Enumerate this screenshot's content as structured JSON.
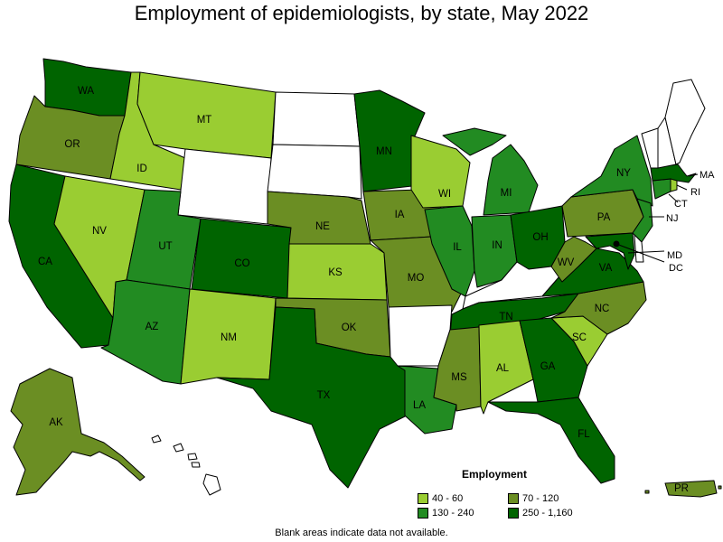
{
  "title": "Employment of epidemiologists, by state, May 2022",
  "footnote": "Blank areas indicate data not available.",
  "legend": {
    "title": "Employment",
    "items": [
      {
        "label": "40 - 60",
        "color": "#9ACD32"
      },
      {
        "label": "70 - 120",
        "color": "#6B8E23"
      },
      {
        "label": "130 - 240",
        "color": "#228B22"
      },
      {
        "label": "250 - 1,160",
        "color": "#006400"
      }
    ]
  },
  "colors": {
    "c1": "#9ACD32",
    "c2": "#6B8E23",
    "c3": "#228B22",
    "c4": "#006400",
    "none": "#FFFFFF"
  },
  "states": {
    "WA": {
      "label": "WA",
      "cls": "c4"
    },
    "OR": {
      "label": "OR",
      "cls": "c2"
    },
    "CA": {
      "label": "CA",
      "cls": "c4"
    },
    "ID": {
      "label": "ID",
      "cls": "c1"
    },
    "NV": {
      "label": "NV",
      "cls": "c1"
    },
    "MT": {
      "label": "MT",
      "cls": "c1"
    },
    "WY": {
      "label": "",
      "cls": "none"
    },
    "UT": {
      "label": "UT",
      "cls": "c3"
    },
    "AZ": {
      "label": "AZ",
      "cls": "c3"
    },
    "CO": {
      "label": "CO",
      "cls": "c4"
    },
    "NM": {
      "label": "NM",
      "cls": "c1"
    },
    "ND": {
      "label": "",
      "cls": "none"
    },
    "SD": {
      "label": "",
      "cls": "none"
    },
    "NE": {
      "label": "NE",
      "cls": "c2"
    },
    "KS": {
      "label": "KS",
      "cls": "c1"
    },
    "OK": {
      "label": "OK",
      "cls": "c2"
    },
    "TX": {
      "label": "TX",
      "cls": "c4"
    },
    "MN": {
      "label": "MN",
      "cls": "c4"
    },
    "IA": {
      "label": "IA",
      "cls": "c2"
    },
    "MO": {
      "label": "MO",
      "cls": "c2"
    },
    "AR": {
      "label": "",
      "cls": "none"
    },
    "LA": {
      "label": "LA",
      "cls": "c3"
    },
    "WI": {
      "label": "WI",
      "cls": "c1"
    },
    "IL": {
      "label": "IL",
      "cls": "c3"
    },
    "MI": {
      "label": "MI",
      "cls": "c3"
    },
    "IN": {
      "label": "IN",
      "cls": "c3"
    },
    "OH": {
      "label": "OH",
      "cls": "c4"
    },
    "KY": {
      "label": "",
      "cls": "none"
    },
    "TN": {
      "label": "TN",
      "cls": "c4"
    },
    "MS": {
      "label": "MS",
      "cls": "c2"
    },
    "AL": {
      "label": "AL",
      "cls": "c1"
    },
    "GA": {
      "label": "GA",
      "cls": "c4"
    },
    "FL": {
      "label": "FL",
      "cls": "c4"
    },
    "SC": {
      "label": "SC",
      "cls": "c1"
    },
    "NC": {
      "label": "NC",
      "cls": "c2"
    },
    "VA": {
      "label": "VA",
      "cls": "c4"
    },
    "WV": {
      "label": "WV",
      "cls": "c2"
    },
    "PA": {
      "label": "PA",
      "cls": "c2"
    },
    "NY": {
      "label": "NY",
      "cls": "c3"
    },
    "NJ": {
      "label": "NJ",
      "cls": "c3"
    },
    "DE": {
      "label": "",
      "cls": "none"
    },
    "MD": {
      "label": "MD",
      "cls": "c4"
    },
    "DC": {
      "label": "DC",
      "cls": "c4"
    },
    "CT": {
      "label": "CT",
      "cls": "c3"
    },
    "RI": {
      "label": "RI",
      "cls": "c1"
    },
    "MA": {
      "label": "MA",
      "cls": "c4"
    },
    "VT": {
      "label": "",
      "cls": "none"
    },
    "NH": {
      "label": "",
      "cls": "none"
    },
    "ME": {
      "label": "",
      "cls": "none"
    },
    "AK": {
      "label": "AK",
      "cls": "c2"
    },
    "HI": {
      "label": "",
      "cls": "none"
    },
    "PR": {
      "label": "PR",
      "cls": "c2"
    }
  }
}
